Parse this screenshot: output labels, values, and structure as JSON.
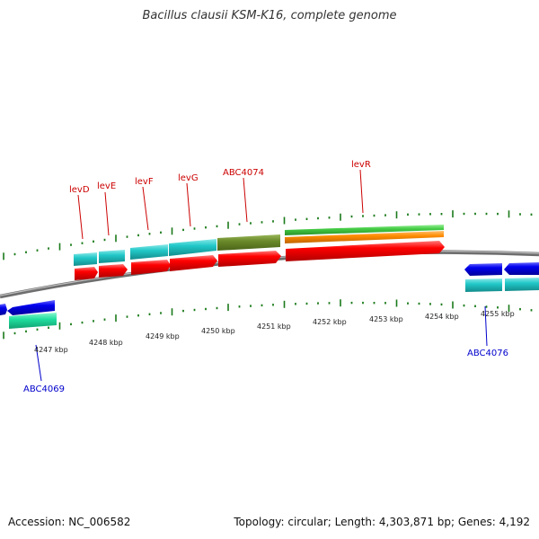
{
  "title": "Bacillus clausii KSM-K16, complete genome",
  "footer": {
    "accession": "Accession: NC_006582",
    "topology": "Topology: circular; Length: 4,303,871 bp; Genes: 4,192"
  },
  "colors": {
    "backbone": "#888888",
    "tick": "#1a7a1a",
    "gene_red": "#ff0000",
    "gene_blue": "#0000ee",
    "cds_cyan": "#22c8c8",
    "cds_olive": "#6b8a2a",
    "cds_green": "#44cc44",
    "cds_orange": "#ff8c00",
    "cds_aqua": "#20e0a0",
    "label_red": "#cc0000",
    "label_blue": "#0000cc"
  },
  "kbp_labels": [
    "4247 kbp",
    "4248 kbp",
    "4249 kbp",
    "4250 kbp",
    "4251 kbp",
    "4252 kbp",
    "4253 kbp",
    "4254 kbp",
    "4255 kbp"
  ],
  "gene_labels_top": [
    "levD",
    "levE",
    "levF",
    "levG",
    "ABC4074",
    "levR"
  ],
  "gene_labels_bottom": [
    "ABC4069",
    "ABC4076"
  ]
}
